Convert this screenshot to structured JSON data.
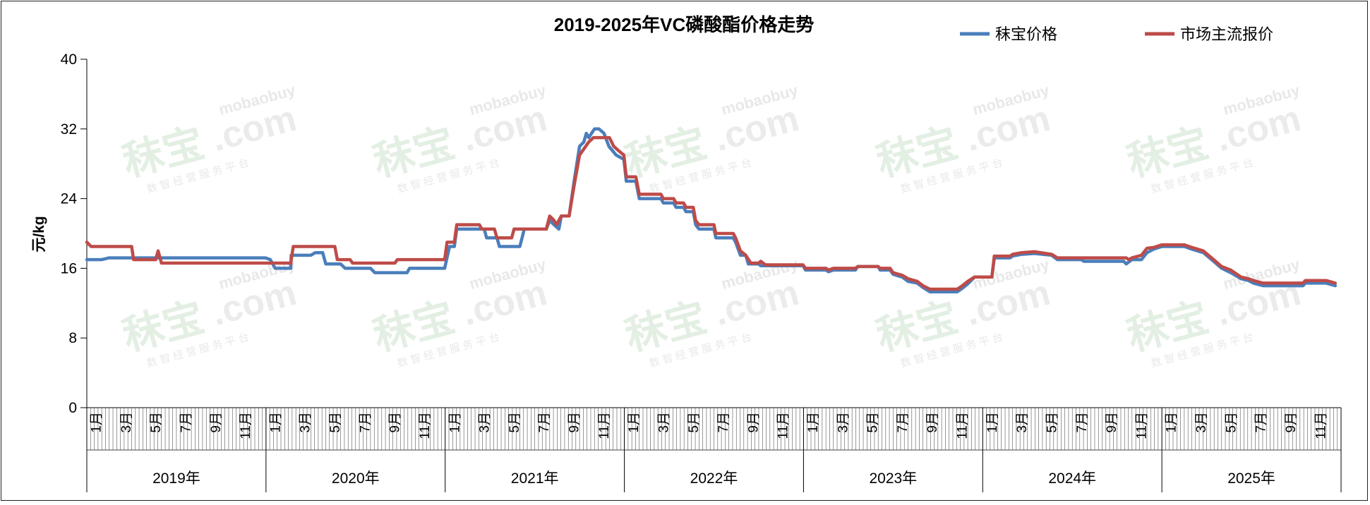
{
  "chart_data": {
    "type": "line",
    "title": "2019-2025年VC磷酸酯价格走势",
    "ylabel": "元/kg",
    "ylim": [
      0,
      40
    ],
    "yticks": [
      "0",
      "8",
      "16",
      "24",
      "32",
      "40"
    ],
    "grid": false,
    "legend_position": "top-right",
    "watermark": {
      "brand": "秣宝",
      "domain": "mobaobuy",
      "dotcom": ".com",
      "tagline": "数 智 经 营 服 务 平 台"
    },
    "month_labels": [
      "1月",
      "3月",
      "5月",
      "7月",
      "9月",
      "11月"
    ],
    "years": [
      "2019年",
      "2020年",
      "2021年",
      "2022年",
      "2023年",
      "2024年",
      "2025年"
    ],
    "colors": {
      "mobao": "#4a7ebb",
      "market": "#be4b48",
      "axis": "#000000"
    },
    "series": [
      {
        "name": "秣宝价格",
        "points": [
          [
            "2019-01-01",
            17
          ],
          [
            "2019-02-01",
            17
          ],
          [
            "2019-02-15",
            17.2
          ],
          [
            "2019-05-01",
            17.2
          ],
          [
            "2019-12-31",
            17.2
          ],
          [
            "2020-01-10",
            17
          ],
          [
            "2020-01-20",
            16
          ],
          [
            "2020-02-20",
            16
          ],
          [
            "2020-02-21",
            17.5
          ],
          [
            "2020-04-01",
            17.5
          ],
          [
            "2020-04-10",
            17.8
          ],
          [
            "2020-04-25",
            17.8
          ],
          [
            "2020-05-01",
            16.5
          ],
          [
            "2020-06-01",
            16.5
          ],
          [
            "2020-06-10",
            16
          ],
          [
            "2020-08-01",
            16
          ],
          [
            "2020-08-10",
            15.5
          ],
          [
            "2020-10-15",
            15.5
          ],
          [
            "2020-10-20",
            16
          ],
          [
            "2020-12-31",
            16
          ],
          [
            "2021-01-10",
            18.5
          ],
          [
            "2021-01-20",
            18.5
          ],
          [
            "2021-01-25",
            20.5
          ],
          [
            "2021-03-20",
            20.5
          ],
          [
            "2021-03-25",
            19.5
          ],
          [
            "2021-04-15",
            19.5
          ],
          [
            "2021-04-20",
            18.5
          ],
          [
            "2021-06-01",
            18.5
          ],
          [
            "2021-06-10",
            20.5
          ],
          [
            "2021-07-25",
            20.5
          ],
          [
            "2021-08-01",
            21.5
          ],
          [
            "2021-08-10",
            21
          ],
          [
            "2021-08-20",
            20.5
          ],
          [
            "2021-08-25",
            22
          ],
          [
            "2021-09-10",
            22
          ],
          [
            "2021-09-20",
            26
          ],
          [
            "2021-10-01",
            30
          ],
          [
            "2021-10-10",
            30.5
          ],
          [
            "2021-10-15",
            31.5
          ],
          [
            "2021-10-20",
            31
          ],
          [
            "2021-11-01",
            32
          ],
          [
            "2021-11-10",
            32
          ],
          [
            "2021-11-20",
            31.5
          ],
          [
            "2021-11-30",
            30
          ],
          [
            "2021-12-15",
            29
          ],
          [
            "2021-12-31",
            28.5
          ],
          [
            "2022-01-05",
            26
          ],
          [
            "2022-01-25",
            26
          ],
          [
            "2022-02-01",
            24
          ],
          [
            "2022-03-15",
            24
          ],
          [
            "2022-03-20",
            23.5
          ],
          [
            "2022-04-10",
            23.5
          ],
          [
            "2022-04-15",
            23
          ],
          [
            "2022-04-30",
            23
          ],
          [
            "2022-05-05",
            22.5
          ],
          [
            "2022-05-20",
            22.5
          ],
          [
            "2022-05-25",
            21
          ],
          [
            "2022-06-01",
            20.5
          ],
          [
            "2022-07-01",
            20.5
          ],
          [
            "2022-07-05",
            19.5
          ],
          [
            "2022-08-10",
            19.5
          ],
          [
            "2022-08-15",
            19
          ],
          [
            "2022-08-25",
            17.5
          ],
          [
            "2022-09-05",
            17.5
          ],
          [
            "2022-09-10",
            16.5
          ],
          [
            "2022-10-01",
            16.5
          ],
          [
            "2022-10-05",
            16.3
          ],
          [
            "2022-12-31",
            16.3
          ],
          [
            "2023-01-05",
            15.8
          ],
          [
            "2023-02-15",
            15.8
          ],
          [
            "2023-02-20",
            15.6
          ],
          [
            "2023-03-01",
            15.8
          ],
          [
            "2023-04-15",
            15.8
          ],
          [
            "2023-04-20",
            16.2
          ],
          [
            "2023-06-01",
            16.2
          ],
          [
            "2023-06-05",
            15.8
          ],
          [
            "2023-06-25",
            15.8
          ],
          [
            "2023-07-01",
            15.3
          ],
          [
            "2023-07-20",
            15
          ],
          [
            "2023-08-01",
            14.5
          ],
          [
            "2023-08-20",
            14.3
          ],
          [
            "2023-09-01",
            13.8
          ],
          [
            "2023-09-15",
            13.3
          ],
          [
            "2023-11-10",
            13.3
          ],
          [
            "2023-11-20",
            13.7
          ],
          [
            "2023-12-01",
            14.2
          ],
          [
            "2023-12-15",
            15
          ],
          [
            "2024-01-20",
            15
          ],
          [
            "2024-01-25",
            17.2
          ],
          [
            "2024-02-25",
            17.2
          ],
          [
            "2024-03-01",
            17.4
          ],
          [
            "2024-03-20",
            17.6
          ],
          [
            "2024-04-15",
            17.7
          ],
          [
            "2024-05-20",
            17.5
          ],
          [
            "2024-06-01",
            17
          ],
          [
            "2024-07-20",
            17
          ],
          [
            "2024-07-25",
            16.8
          ],
          [
            "2024-10-15",
            16.8
          ],
          [
            "2024-10-20",
            16.5
          ],
          [
            "2024-11-01",
            17
          ],
          [
            "2024-11-20",
            17
          ],
          [
            "2024-12-01",
            17.8
          ],
          [
            "2024-12-15",
            18.2
          ],
          [
            "2025-01-01",
            18.5
          ],
          [
            "2025-02-15",
            18.5
          ],
          [
            "2025-03-01",
            18.2
          ],
          [
            "2025-03-25",
            17.8
          ],
          [
            "2025-04-15",
            16.8
          ],
          [
            "2025-05-01",
            16
          ],
          [
            "2025-05-20",
            15.5
          ],
          [
            "2025-06-10",
            14.8
          ],
          [
            "2025-06-25",
            14.6
          ],
          [
            "2025-07-05",
            14.3
          ],
          [
            "2025-07-25",
            14
          ],
          [
            "2025-10-15",
            14
          ],
          [
            "2025-10-20",
            14.3
          ],
          [
            "2025-12-01",
            14.3
          ],
          [
            "2025-12-20",
            14
          ]
        ]
      },
      {
        "name": "市场主流报价",
        "points": [
          [
            "2019-01-01",
            19
          ],
          [
            "2019-01-10",
            18.5
          ],
          [
            "2019-04-01",
            18.5
          ],
          [
            "2019-04-05",
            17
          ],
          [
            "2019-05-20",
            17
          ],
          [
            "2019-05-25",
            18
          ],
          [
            "2019-06-01",
            16.6
          ],
          [
            "2019-12-31",
            16.6
          ],
          [
            "2020-01-10",
            16.6
          ],
          [
            "2020-02-20",
            16.6
          ],
          [
            "2020-02-25",
            18.5
          ],
          [
            "2020-05-20",
            18.5
          ],
          [
            "2020-05-25",
            17
          ],
          [
            "2020-06-20",
            17
          ],
          [
            "2020-06-25",
            16.6
          ],
          [
            "2020-09-20",
            16.6
          ],
          [
            "2020-09-25",
            17
          ],
          [
            "2020-12-31",
            17
          ],
          [
            "2021-01-05",
            19
          ],
          [
            "2021-01-20",
            19
          ],
          [
            "2021-01-25",
            21
          ],
          [
            "2021-03-10",
            21
          ],
          [
            "2021-03-15",
            20.5
          ],
          [
            "2021-04-10",
            20.5
          ],
          [
            "2021-04-15",
            19.5
          ],
          [
            "2021-05-15",
            19.5
          ],
          [
            "2021-05-20",
            20.5
          ],
          [
            "2021-07-25",
            20.5
          ],
          [
            "2021-08-01",
            22
          ],
          [
            "2021-08-10",
            21.5
          ],
          [
            "2021-08-15",
            21
          ],
          [
            "2021-08-25",
            22
          ],
          [
            "2021-09-10",
            22
          ],
          [
            "2021-09-20",
            25.5
          ],
          [
            "2021-10-01",
            29
          ],
          [
            "2021-10-20",
            30.5
          ],
          [
            "2021-10-30",
            31
          ],
          [
            "2021-12-01",
            31
          ],
          [
            "2021-12-10",
            30
          ],
          [
            "2021-12-20",
            29.5
          ],
          [
            "2021-12-31",
            29
          ],
          [
            "2022-01-05",
            26.5
          ],
          [
            "2022-01-25",
            26.5
          ],
          [
            "2022-02-01",
            24.5
          ],
          [
            "2022-03-15",
            24.5
          ],
          [
            "2022-03-20",
            24
          ],
          [
            "2022-04-10",
            24
          ],
          [
            "2022-04-15",
            23.5
          ],
          [
            "2022-04-30",
            23.5
          ],
          [
            "2022-05-05",
            23
          ],
          [
            "2022-05-20",
            23
          ],
          [
            "2022-05-25",
            21.5
          ],
          [
            "2022-06-01",
            21
          ],
          [
            "2022-07-01",
            21
          ],
          [
            "2022-07-05",
            20
          ],
          [
            "2022-08-10",
            20
          ],
          [
            "2022-08-15",
            19.5
          ],
          [
            "2022-08-25",
            18
          ],
          [
            "2022-09-05",
            17.5
          ],
          [
            "2022-09-15",
            16.6
          ],
          [
            "2022-10-01",
            16.6
          ],
          [
            "2022-10-05",
            16.8
          ],
          [
            "2022-10-15",
            16.4
          ],
          [
            "2022-12-31",
            16.4
          ],
          [
            "2023-01-05",
            16
          ],
          [
            "2023-02-15",
            16
          ],
          [
            "2023-02-20",
            15.8
          ],
          [
            "2023-03-01",
            16
          ],
          [
            "2023-04-15",
            16
          ],
          [
            "2023-04-20",
            16.2
          ],
          [
            "2023-06-01",
            16.2
          ],
          [
            "2023-06-05",
            16
          ],
          [
            "2023-06-25",
            16
          ],
          [
            "2023-07-01",
            15.5
          ],
          [
            "2023-07-20",
            15.2
          ],
          [
            "2023-08-01",
            14.8
          ],
          [
            "2023-08-20",
            14.5
          ],
          [
            "2023-09-01",
            14
          ],
          [
            "2023-09-15",
            13.6
          ],
          [
            "2023-11-10",
            13.6
          ],
          [
            "2023-11-20",
            14
          ],
          [
            "2023-12-01",
            14.5
          ],
          [
            "2023-12-15",
            15
          ],
          [
            "2024-01-20",
            15
          ],
          [
            "2024-01-25",
            17.4
          ],
          [
            "2024-02-25",
            17.4
          ],
          [
            "2024-03-01",
            17.6
          ],
          [
            "2024-03-20",
            17.8
          ],
          [
            "2024-04-15",
            17.9
          ],
          [
            "2024-05-20",
            17.6
          ],
          [
            "2024-06-01",
            17.2
          ],
          [
            "2024-10-20",
            17.2
          ],
          [
            "2024-10-25",
            17
          ],
          [
            "2024-11-01",
            17.2
          ],
          [
            "2024-11-20",
            17.5
          ],
          [
            "2024-12-01",
            18.3
          ],
          [
            "2024-12-15",
            18.4
          ],
          [
            "2025-01-01",
            18.7
          ],
          [
            "2025-02-15",
            18.7
          ],
          [
            "2025-03-01",
            18.4
          ],
          [
            "2025-03-25",
            18
          ],
          [
            "2025-04-15",
            17
          ],
          [
            "2025-05-01",
            16.2
          ],
          [
            "2025-05-20",
            15.8
          ],
          [
            "2025-06-10",
            15
          ],
          [
            "2025-06-25",
            14.8
          ],
          [
            "2025-07-05",
            14.6
          ],
          [
            "2025-07-25",
            14.3
          ],
          [
            "2025-10-15",
            14.3
          ],
          [
            "2025-10-20",
            14.6
          ],
          [
            "2025-12-01",
            14.6
          ],
          [
            "2025-12-20",
            14.3
          ]
        ]
      }
    ]
  }
}
